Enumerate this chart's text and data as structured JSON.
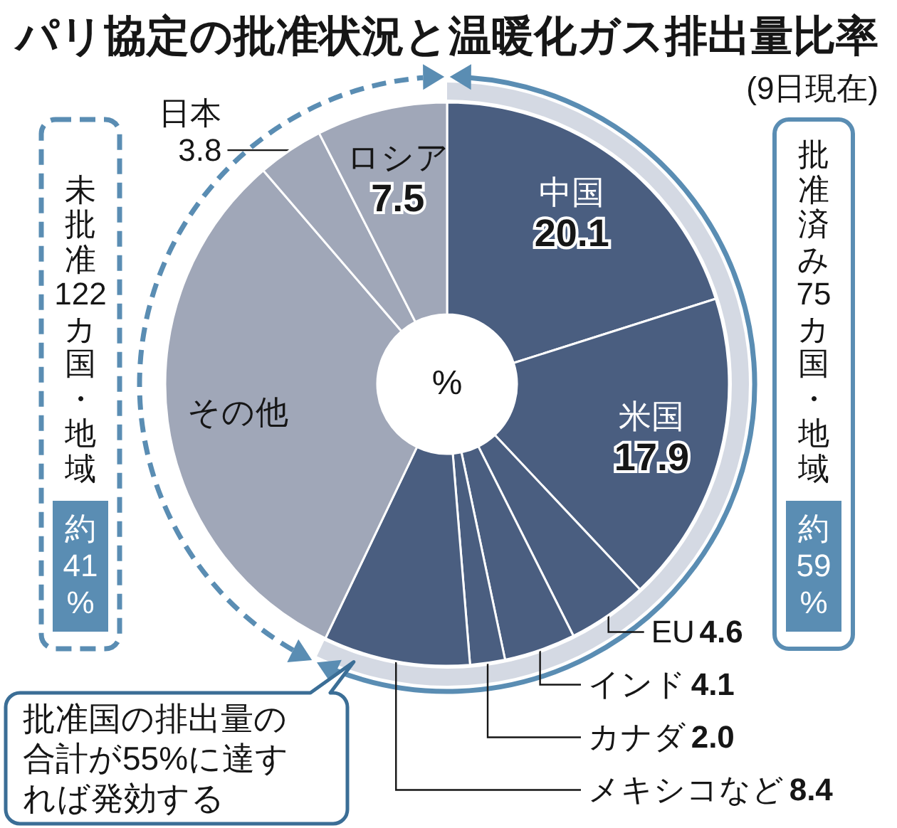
{
  "chart_data": {
    "type": "donut",
    "title": "パリ協定の批准状況と温暖化ガス排出量比率",
    "subtitle": "(9日現在)",
    "categories": [
      "中国",
      "米国",
      "EU",
      "インド",
      "カナダ",
      "メキシコなど",
      "その他",
      "日本",
      "ロシア"
    ],
    "values": [
      20.1,
      17.9,
      4.6,
      4.1,
      2.0,
      8.4,
      31.6,
      3.8,
      7.5
    ],
    "colors": [
      "#4a5e80",
      "#4a5e80",
      "#4a5e80",
      "#4a5e80",
      "#4a5e80",
      "#4a5e80",
      "#a0a7b8",
      "#a0a7b8",
      "#a0a7b8"
    ],
    "value_labels": [
      "20.1",
      "17.9",
      "4.6",
      "4.1",
      "2.0",
      "8.4",
      null,
      "3.8",
      "7.5"
    ],
    "annotations": [
      "%",
      "未批准122カ国・地域",
      "約41%",
      "批准済み75カ国・地域",
      "約59%",
      "批准国の排出量の合計が55%に達すれば発効する"
    ]
  }
}
